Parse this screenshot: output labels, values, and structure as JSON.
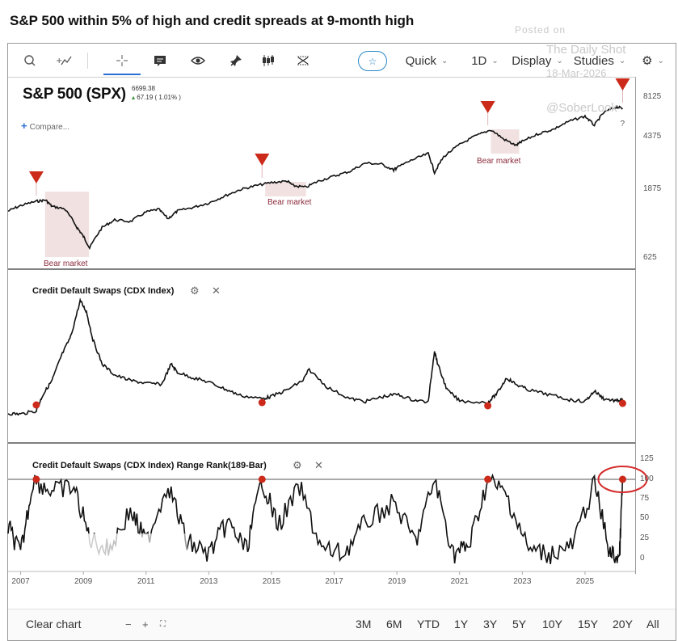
{
  "headline": "S&P 500 within 5% of high and credit spreads at 9-month high",
  "watermark": {
    "posted_on": "Posted on",
    "source": "The Daily Shot",
    "date": "18-Mar-2026",
    "handle": "@SoberLook"
  },
  "toolbar": {
    "icons": [
      "search-icon",
      "draw-line-icon",
      "crosshair-icon",
      "comment-icon",
      "eye-icon",
      "pin-icon",
      "candlestick-icon",
      "pattern-icon",
      "star-icon",
      "gear-icon"
    ],
    "quick_label": "Quick",
    "interval_label": "1D",
    "display_label": "Display",
    "studies_label": "Studies"
  },
  "chart": {
    "symbol": "S&P 500 (SPX)",
    "last_price": "6699.38",
    "change": "67.19 ( 1.01% )",
    "compare_label": "Compare...",
    "price_axis": [
      "8125",
      "4375",
      "1875",
      "625"
    ],
    "bear_market_label": "Bear market",
    "bear_markets": [
      {
        "label": "Bear market",
        "start": 2007.78,
        "end": 2009.18
      },
      {
        "label": "Bear market",
        "start": 2014.8,
        "end": 2016.1
      },
      {
        "label": "Bear market",
        "start": 2022.0,
        "end": 2022.9
      }
    ],
    "signal_markers": [
      2007.5,
      2014.7,
      2021.9,
      2026.2
    ],
    "question_mark": "?"
  },
  "panes": [
    {
      "title": "Credit Default Swaps (CDX Index)",
      "y_axis": []
    },
    {
      "title": "Credit Default Swaps (CDX Index) Range Rank(189-Bar)",
      "y_axis": [
        "125",
        "100",
        "75",
        "50",
        "25",
        "0"
      ]
    }
  ],
  "chart_data": {
    "type": "line",
    "x_range": [
      2006.6,
      2026.6
    ],
    "x_ticks": [
      "2007",
      "2009",
      "2011",
      "2013",
      "2015",
      "2017",
      "2019",
      "2021",
      "2023",
      "2025"
    ],
    "series": [
      {
        "name": "S&P 500 (SPX)",
        "scale": "log",
        "x": [
          2006.6,
          2007.0,
          2007.5,
          2007.8,
          2008.0,
          2008.4,
          2008.8,
          2009.0,
          2009.2,
          2009.6,
          2010.0,
          2010.5,
          2011.0,
          2011.4,
          2011.7,
          2012.0,
          2012.5,
          2013.0,
          2013.5,
          2014.0,
          2014.5,
          2015.0,
          2015.5,
          2015.7,
          2016.1,
          2016.5,
          2017.0,
          2017.5,
          2018.0,
          2018.5,
          2018.9,
          2019.0,
          2019.5,
          2020.0,
          2020.2,
          2020.5,
          2021.0,
          2021.5,
          2022.0,
          2022.4,
          2022.8,
          2023.0,
          2023.5,
          2024.0,
          2024.5,
          2025.0,
          2025.3,
          2025.6,
          2026.0,
          2026.2
        ],
        "y": [
          1300,
          1420,
          1520,
          1550,
          1400,
          1350,
          1000,
          870,
          720,
          1000,
          1130,
          1100,
          1280,
          1340,
          1150,
          1300,
          1380,
          1480,
          1650,
          1830,
          1950,
          2050,
          2100,
          1950,
          1900,
          2100,
          2270,
          2450,
          2800,
          2750,
          2500,
          2600,
          2950,
          3250,
          2400,
          3100,
          3750,
          4300,
          4750,
          4100,
          3700,
          3950,
          4450,
          4800,
          5450,
          5900,
          5100,
          6250,
          6850,
          6700
        ]
      },
      {
        "name": "Credit Default Swaps (CDX Index)",
        "x": [
          2006.6,
          2007.0,
          2007.5,
          2007.7,
          2008.0,
          2008.3,
          2008.6,
          2008.9,
          2009.1,
          2009.3,
          2009.6,
          2010.0,
          2010.5,
          2011.0,
          2011.5,
          2011.8,
          2012.0,
          2012.5,
          2013.0,
          2013.5,
          2014.0,
          2014.7,
          2015.0,
          2015.5,
          2016.0,
          2016.2,
          2016.8,
          2017.5,
          2018.0,
          2018.5,
          2019.0,
          2019.5,
          2020.0,
          2020.2,
          2020.3,
          2020.6,
          2021.0,
          2021.9,
          2022.2,
          2022.5,
          2022.8,
          2023.2,
          2023.8,
          2024.5,
          2025.0,
          2025.3,
          2025.6,
          2026.0,
          2026.2
        ],
        "y": [
          35,
          34,
          40,
          68,
          95,
          140,
          175,
          240,
          220,
          170,
          125,
          105,
          95,
          90,
          88,
          125,
          110,
          100,
          92,
          80,
          68,
          62,
          66,
          78,
          95,
          115,
          82,
          62,
          57,
          65,
          70,
          60,
          56,
          150,
          125,
          78,
          58,
          55,
          72,
          100,
          88,
          78,
          70,
          60,
          57,
          76,
          62,
          58,
          60
        ]
      },
      {
        "name": "Credit Default Swaps (CDX Index) Range Rank(189-Bar)",
        "description": "oscillates 0-100",
        "x": [
          2006.6,
          2007.0,
          2007.4,
          2008.0,
          2008.7,
          2009.2,
          2009.8,
          2010.5,
          2011.0,
          2011.7,
          2012.3,
          2013.0,
          2013.6,
          2014.2,
          2014.7,
          2015.2,
          2015.9,
          2016.6,
          2017.3,
          2018.0,
          2018.9,
          2019.6,
          2020.2,
          2020.8,
          2021.3,
          2021.9,
          2022.5,
          2023.2,
          2023.9,
          2024.6,
          2025.3,
          2025.8,
          2026.1,
          2026.2
        ],
        "y": [
          40,
          5,
          100,
          85,
          90,
          25,
          10,
          60,
          20,
          95,
          20,
          5,
          45,
          10,
          100,
          40,
          90,
          10,
          5,
          45,
          70,
          20,
          100,
          5,
          15,
          100,
          80,
          10,
          5,
          15,
          95,
          5,
          0,
          100
        ]
      }
    ],
    "signal_dates": [
      2007.5,
      2014.7,
      2021.9,
      2026.2
    ]
  },
  "bottombar": {
    "clear_label": "Clear chart",
    "ranges": [
      "3M",
      "6M",
      "YTD",
      "1Y",
      "3Y",
      "5Y",
      "10Y",
      "15Y",
      "20Y",
      "All"
    ]
  }
}
